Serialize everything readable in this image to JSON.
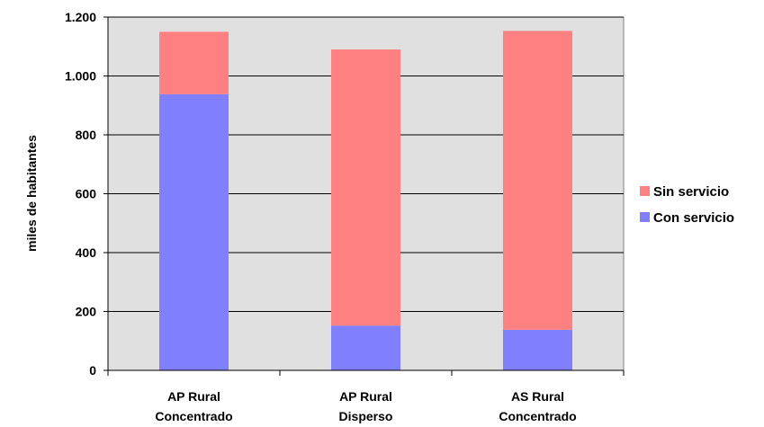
{
  "chart_data": {
    "type": "bar",
    "stacked": true,
    "categories": [
      [
        "AP Rural",
        "Concentrado"
      ],
      [
        "AP Rural",
        "Disperso"
      ],
      [
        "AS Rural",
        "Concentrado"
      ]
    ],
    "series": [
      {
        "name": "Con servicio",
        "values": [
          938,
          152,
          138
        ],
        "color": "#8080ff"
      },
      {
        "name": "Sin servicio",
        "values": [
          212,
          938,
          1015
        ],
        "color": "#ff8080"
      }
    ],
    "ylabel": "miles de habitantes",
    "xlabel": "",
    "ylim": [
      0,
      1200
    ],
    "yticks": [
      0,
      200,
      400,
      600,
      800,
      1000,
      1200
    ],
    "ytick_labels": [
      "0",
      "200",
      "400",
      "600",
      "800",
      "1.000",
      "1.200"
    ],
    "grid": true,
    "plot_background": "#e0e0e0",
    "legend_position": "right",
    "legend": [
      {
        "label": "Sin servicio",
        "color": "#ff8080"
      },
      {
        "label": "Con servicio",
        "color": "#8080ff"
      }
    ]
  }
}
